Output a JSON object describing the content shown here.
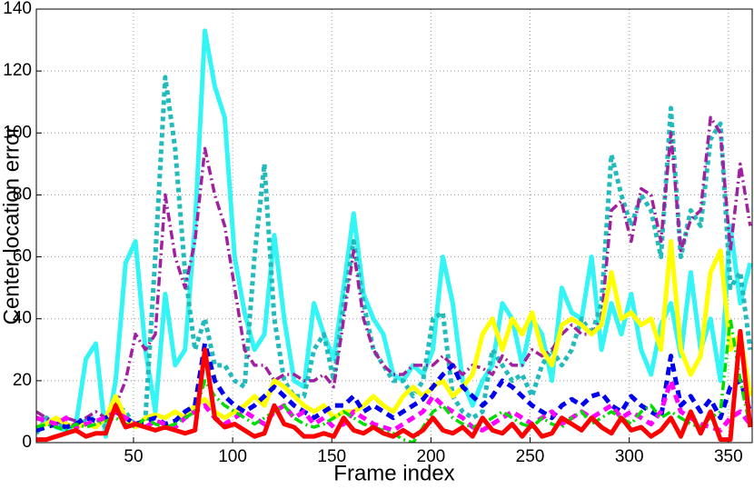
{
  "chart_data": {
    "type": "line",
    "x_label": "Frame index",
    "y_label": "Center location error",
    "x": [
      1,
      6,
      11,
      16,
      21,
      26,
      31,
      36,
      41,
      46,
      51,
      56,
      61,
      66,
      71,
      76,
      81,
      86,
      91,
      96,
      101,
      106,
      111,
      116,
      121,
      126,
      131,
      136,
      141,
      146,
      151,
      156,
      161,
      166,
      171,
      176,
      181,
      186,
      191,
      196,
      201,
      206,
      211,
      216,
      221,
      226,
      231,
      236,
      241,
      246,
      251,
      256,
      261,
      266,
      271,
      276,
      281,
      286,
      291,
      296,
      301,
      306,
      311,
      316,
      321,
      326,
      331,
      336,
      341,
      346,
      351,
      356,
      361
    ],
    "xlim": [
      1,
      362
    ],
    "xticks": [
      50,
      100,
      150,
      200,
      250,
      300,
      350
    ],
    "ylim": [
      0,
      140
    ],
    "yticks": [
      0,
      20,
      40,
      60,
      80,
      100,
      120,
      140
    ],
    "grid": true,
    "series": [
      {
        "color": "#33f5f5",
        "style": "solid",
        "values": [
          3,
          8,
          5,
          4,
          6,
          27,
          32,
          2,
          20,
          58,
          65,
          30,
          10,
          48,
          25,
          30,
          70,
          133,
          115,
          105,
          60,
          42,
          30,
          35,
          67,
          40,
          20,
          18,
          45,
          35,
          27,
          50,
          74,
          48,
          40,
          35,
          22,
          20,
          25,
          22,
          30,
          60,
          45,
          20,
          12,
          20,
          25,
          45,
          40,
          25,
          40,
          35,
          20,
          50,
          42,
          40,
          60,
          30,
          45,
          35,
          48,
          30,
          22,
          38,
          45,
          28,
          55,
          30,
          40,
          20,
          70,
          45,
          58
        ]
      },
      {
        "color": "#22bbbb",
        "style": "dotted",
        "values": [
          3,
          8,
          6,
          5,
          6,
          7,
          8,
          5,
          12,
          10,
          5,
          8,
          60,
          118,
          95,
          55,
          30,
          40,
          25,
          25,
          20,
          18,
          60,
          90,
          40,
          20,
          15,
          15,
          30,
          35,
          20,
          45,
          65,
          45,
          30,
          25,
          20,
          20,
          15,
          20,
          40,
          42,
          15,
          10,
          8,
          10,
          30,
          25,
          20,
          22,
          15,
          25,
          30,
          25,
          30,
          40,
          35,
          45,
          93,
          80,
          70,
          80,
          75,
          60,
          108,
          60,
          75,
          70,
          98,
          103,
          50,
          55,
          30
        ]
      },
      {
        "color": "#a020a0",
        "style": "dashdot",
        "values": [
          10,
          8,
          6,
          8,
          7,
          8,
          10,
          8,
          12,
          20,
          35,
          30,
          35,
          80,
          60,
          50,
          65,
          95,
          80,
          70,
          50,
          30,
          25,
          25,
          20,
          22,
          22,
          20,
          20,
          22,
          18,
          40,
          62,
          40,
          30,
          25,
          22,
          22,
          25,
          25,
          25,
          28,
          25,
          22,
          25,
          24,
          22,
          28,
          25,
          25,
          30,
          28,
          30,
          35,
          38,
          35,
          35,
          40,
          75,
          78,
          65,
          82,
          80,
          65,
          100,
          62,
          72,
          75,
          105,
          100,
          62,
          90,
          70
        ]
      },
      {
        "color": "#ffff00",
        "style": "solid",
        "values": [
          5,
          6,
          8,
          6,
          5,
          6,
          5,
          8,
          15,
          8,
          5,
          8,
          9,
          8,
          10,
          8,
          12,
          14,
          10,
          8,
          10,
          12,
          15,
          12,
          20,
          18,
          15,
          12,
          10,
          12,
          8,
          10,
          10,
          12,
          15,
          12,
          10,
          15,
          18,
          15,
          18,
          20,
          15,
          18,
          22,
          35,
          40,
          30,
          40,
          35,
          42,
          30,
          25,
          38,
          40,
          38,
          35,
          38,
          55,
          40,
          42,
          38,
          40,
          30,
          65,
          30,
          22,
          28,
          55,
          62,
          30,
          35,
          15
        ]
      },
      {
        "color": "#0000ee",
        "style": "dashed",
        "values": [
          4,
          5,
          6,
          5,
          6,
          8,
          7,
          8,
          10,
          8,
          6,
          7,
          8,
          6,
          7,
          10,
          12,
          32,
          20,
          15,
          12,
          10,
          12,
          15,
          18,
          15,
          12,
          10,
          8,
          10,
          12,
          12,
          15,
          10,
          12,
          10,
          8,
          10,
          12,
          14,
          18,
          22,
          25,
          18,
          15,
          12,
          15,
          20,
          18,
          15,
          12,
          10,
          8,
          12,
          14,
          12,
          15,
          16,
          12,
          10,
          15,
          12,
          10,
          8,
          28,
          12,
          15,
          10,
          14,
          8,
          18,
          20,
          10
        ]
      },
      {
        "color": "#ff00ff",
        "style": "dashed",
        "values": [
          8,
          7,
          6,
          8,
          5,
          6,
          7,
          8,
          10,
          8,
          6,
          5,
          7,
          6,
          5,
          8,
          10,
          12,
          8,
          6,
          8,
          10,
          8,
          6,
          10,
          12,
          8,
          10,
          6,
          8,
          5,
          6,
          10,
          8,
          6,
          5,
          4,
          6,
          8,
          10,
          15,
          12,
          10,
          8,
          5,
          4,
          6,
          8,
          10,
          8,
          6,
          8,
          10,
          6,
          8,
          10,
          8,
          10,
          12,
          8,
          10,
          8,
          6,
          10,
          20,
          10,
          8,
          6,
          5,
          4,
          8,
          10,
          6
        ]
      },
      {
        "color": "#00dd00",
        "style": "dashdot",
        "values": [
          5,
          6,
          5,
          4,
          6,
          5,
          6,
          7,
          8,
          6,
          5,
          8,
          6,
          5,
          6,
          8,
          10,
          20,
          15,
          12,
          10,
          8,
          6,
          8,
          10,
          12,
          8,
          6,
          5,
          6,
          8,
          10,
          8,
          6,
          5,
          4,
          3,
          1,
          0,
          5,
          10,
          12,
          8,
          6,
          5,
          6,
          8,
          10,
          8,
          6,
          5,
          8,
          6,
          5,
          8,
          10,
          6,
          8,
          10,
          8,
          6,
          10,
          12,
          8,
          10,
          8,
          6,
          5,
          8,
          10,
          40,
          20,
          5
        ]
      },
      {
        "color": "#ff0000",
        "style": "solid",
        "values": [
          1,
          1,
          2,
          3,
          4,
          2,
          3,
          3,
          12,
          5,
          6,
          5,
          4,
          5,
          4,
          3,
          4,
          30,
          8,
          5,
          6,
          4,
          2,
          3,
          12,
          6,
          5,
          2,
          2,
          3,
          2,
          8,
          4,
          3,
          5,
          3,
          2,
          4,
          2,
          4,
          8,
          4,
          3,
          5,
          2,
          8,
          4,
          3,
          6,
          2,
          6,
          2,
          3,
          8,
          6,
          4,
          8,
          5,
          3,
          8,
          4,
          5,
          2,
          4,
          8,
          2,
          10,
          3,
          10,
          1,
          1,
          36,
          5
        ]
      }
    ]
  }
}
